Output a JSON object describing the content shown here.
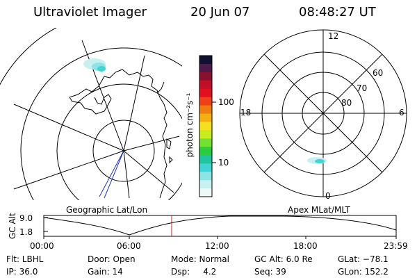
{
  "header": {
    "instrument": "Ultraviolet Imager",
    "date": "20 Jun 07",
    "time": "08:48:27 UT"
  },
  "colorbar": {
    "label": "photon cm⁻²s⁻¹",
    "ticks": [
      "100",
      "10"
    ],
    "colors": [
      "#101030",
      "#4a1a4a",
      "#8a1030",
      "#c0102a",
      "#e01020",
      "#f04018",
      "#f07c10",
      "#f4b010",
      "#f4e020",
      "#c8ec20",
      "#74e030",
      "#2ccc40",
      "#20c4a0",
      "#40d4d4",
      "#8ce4e4",
      "#c8f0f0",
      "#eef8f8"
    ]
  },
  "geo_map": {
    "label": "Geographic Lat/Lon"
  },
  "polar_plot": {
    "label": "Apex MLat/MLT",
    "mlt_labels": [
      "12",
      "18",
      "6",
      "0"
    ],
    "mlat_labels": [
      "60",
      "70",
      "80"
    ]
  },
  "altitude_plot": {
    "ylabel": "GC Alt",
    "y_ticks": [
      "9.0",
      "1.8"
    ],
    "x_ticks": [
      "00:00",
      "06:00",
      "12:00",
      "18:00",
      "23:59"
    ],
    "current_time_color": "#c02020"
  },
  "info": {
    "filter": "Flt: LBHL",
    "ip": "IP: 36.0",
    "door": "Door: Open",
    "gain": "Gain: 14",
    "mode": "Mode: Normal",
    "dsp": "Dsp:     4.2",
    "gc_alt": "GC Alt: 6.0 Re",
    "seq": "Seq: 39",
    "glat": "GLat: −78.1",
    "glon": "GLon: 152.2"
  }
}
